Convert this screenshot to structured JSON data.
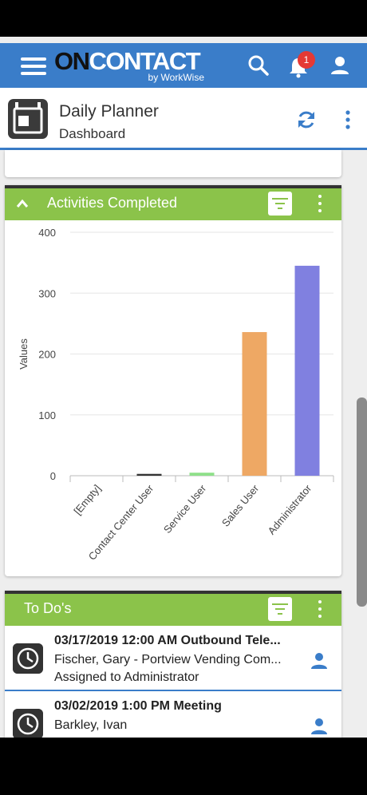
{
  "appbar": {
    "brand_on": "ON",
    "brand_contact": "CONTACT",
    "brand_sub": "by WorkWise",
    "notification_count": "1",
    "icons": [
      "menu-icon",
      "search-icon",
      "bell-icon",
      "account-icon"
    ]
  },
  "header": {
    "title": "Daily Planner",
    "subtitle": "Dashboard",
    "icons": [
      "calendar-icon",
      "refresh-icon",
      "more-vert-icon"
    ]
  },
  "activities": {
    "title": "Activities Completed",
    "icons": [
      "chevron-up-icon",
      "filter-icon",
      "more-vert-icon"
    ]
  },
  "chart_data": {
    "type": "bar",
    "categories": [
      "[Empty]",
      "Contact Center User",
      "Service User",
      "Sales User",
      "Administrator"
    ],
    "values": [
      0,
      3,
      5,
      236,
      345
    ],
    "colors": [
      "#3a7dc9",
      "#333333",
      "#8fe08a",
      "#eea864",
      "#8080e0"
    ],
    "ylabel": "Values",
    "ylim": [
      0,
      400
    ],
    "yticks": [
      0,
      100,
      200,
      300,
      400
    ],
    "grid": true
  },
  "todos": {
    "title": "To Do's",
    "items": [
      {
        "line1": "03/17/2019 12:00 AM Outbound Tele...",
        "line2": "Fischer, Gary - Portview Vending Com...",
        "line3": "Assigned to Administrator"
      },
      {
        "line1": "03/02/2019 1:00 PM Meeting",
        "line2": "Barkley, Ivan",
        "line3": ""
      }
    ]
  }
}
